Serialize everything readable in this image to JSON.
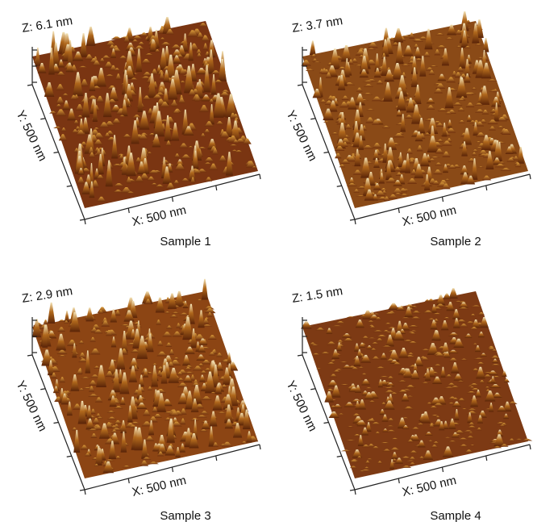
{
  "panels": [
    {
      "z_label": "Z: 6.1 nm",
      "y_label": "Y: 500 nm",
      "x_label": "X: 500 nm",
      "caption": "Sample 1"
    },
    {
      "z_label": "Z: 3.7 nm",
      "y_label": "Y: 500 nm",
      "x_label": "X: 500 nm",
      "caption": "Sample 2"
    },
    {
      "z_label": "Z: 2.9 nm",
      "y_label": "Y: 500 nm",
      "x_label": "X: 500 nm",
      "caption": "Sample 3"
    },
    {
      "z_label": "Z: 1.5 nm",
      "y_label": "Y: 500 nm",
      "x_label": "X: 500 nm",
      "caption": "Sample 4"
    }
  ]
}
